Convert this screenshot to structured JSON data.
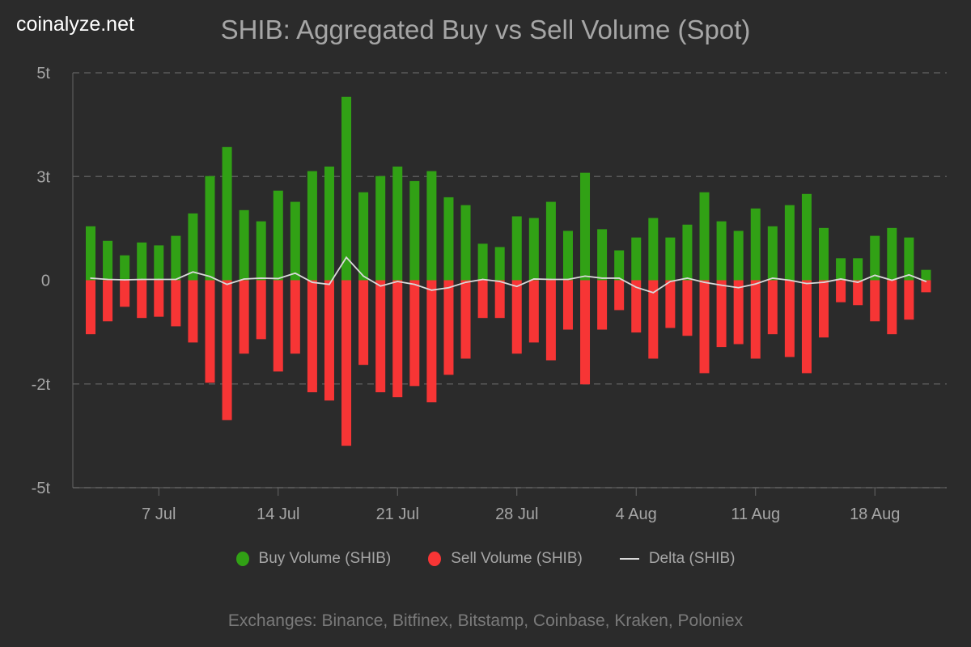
{
  "brand": "coinalyze.net",
  "footer": "Exchanges: Binance, Bitfinex, Bitstamp, Coinbase, Kraken, Poloniex",
  "chart_data": {
    "type": "bar",
    "title": "SHIB: Aggregated Buy vs Sell Volume (Spot)",
    "xlabel": "",
    "ylabel": "",
    "ylim": [
      -5,
      5
    ],
    "grid": true,
    "legend_position": "bottom",
    "y_ticks": [
      5,
      2.5,
      0,
      -2.5,
      -5
    ],
    "y_tick_labels": [
      "5t",
      "3t",
      "0",
      "-2t",
      "-5t"
    ],
    "x_tick_labels": [
      "7 Jul",
      "14 Jul",
      "21 Jul",
      "28 Jul",
      "4 Aug",
      "11 Aug",
      "18 Aug"
    ],
    "x_tick_dates": [
      "2024-07-07",
      "2024-07-14",
      "2024-07-21",
      "2024-07-28",
      "2024-08-04",
      "2024-08-11",
      "2024-08-18"
    ],
    "x": [
      "07-03",
      "07-04",
      "07-05",
      "07-06",
      "07-07",
      "07-08",
      "07-09",
      "07-10",
      "07-11",
      "07-12",
      "07-13",
      "07-14",
      "07-15",
      "07-16",
      "07-17",
      "07-18",
      "07-19",
      "07-20",
      "07-21",
      "07-22",
      "07-23",
      "07-24",
      "07-25",
      "07-26",
      "07-27",
      "07-28",
      "07-29",
      "07-30",
      "07-31",
      "08-01",
      "08-02",
      "08-03",
      "08-04",
      "08-05",
      "08-06",
      "08-07",
      "08-08",
      "08-09",
      "08-10",
      "08-11",
      "08-12",
      "08-13",
      "08-14",
      "08-15",
      "08-16",
      "08-17",
      "08-18",
      "08-19",
      "08-20",
      "08-21"
    ],
    "unit": "trillion SHIB",
    "series": [
      {
        "name": "Buy Volume (SHIB)",
        "color": "#31a115",
        "values": [
          1.3,
          0.95,
          0.6,
          0.91,
          0.84,
          1.07,
          1.61,
          2.51,
          3.21,
          1.69,
          1.42,
          2.16,
          1.89,
          2.63,
          2.74,
          4.42,
          2.12,
          2.51,
          2.74,
          2.39,
          2.63,
          2.0,
          1.81,
          0.88,
          0.8,
          1.54,
          1.5,
          1.89,
          1.19,
          2.59,
          1.23,
          0.72,
          1.03,
          1.5,
          1.03,
          1.34,
          2.12,
          1.42,
          1.19,
          1.73,
          1.3,
          1.81,
          2.08,
          1.26,
          0.53,
          0.53,
          1.07,
          1.26,
          1.03,
          0.25
        ]
      },
      {
        "name": "Sell Volume (SHIB)",
        "color": "#f73535",
        "values": [
          -1.3,
          -0.99,
          -0.64,
          -0.91,
          -0.88,
          -1.11,
          -1.5,
          -2.47,
          -3.37,
          -1.77,
          -1.42,
          -2.2,
          -1.77,
          -2.7,
          -2.9,
          -3.99,
          -2.04,
          -2.7,
          -2.82,
          -2.55,
          -2.94,
          -2.28,
          -1.89,
          -0.91,
          -0.91,
          -1.77,
          -1.5,
          -1.93,
          -1.19,
          -2.51,
          -1.19,
          -0.72,
          -1.26,
          -1.89,
          -1.15,
          -1.34,
          -2.24,
          -1.61,
          -1.54,
          -1.89,
          -1.3,
          -1.85,
          -2.24,
          -1.38,
          -0.53,
          -0.6,
          -0.99,
          -1.3,
          -0.95,
          -0.29
        ]
      },
      {
        "name": "Delta (SHIB)",
        "color": "#d9d9d9",
        "type": "line",
        "values": [
          0.05,
          0.02,
          0.01,
          0.02,
          0.02,
          0.02,
          0.2,
          0.09,
          -0.1,
          0.03,
          0.05,
          0.04,
          0.17,
          -0.05,
          -0.1,
          0.55,
          0.1,
          -0.14,
          -0.03,
          -0.1,
          -0.24,
          -0.18,
          -0.05,
          0.02,
          -0.03,
          -0.15,
          0.03,
          0.02,
          0.02,
          0.1,
          0.05,
          0.05,
          -0.17,
          -0.3,
          -0.03,
          0.05,
          -0.05,
          -0.12,
          -0.18,
          -0.09,
          0.05,
          0.0,
          -0.08,
          -0.05,
          0.03,
          -0.05,
          0.12,
          0.0,
          0.13,
          -0.03
        ]
      }
    ]
  }
}
